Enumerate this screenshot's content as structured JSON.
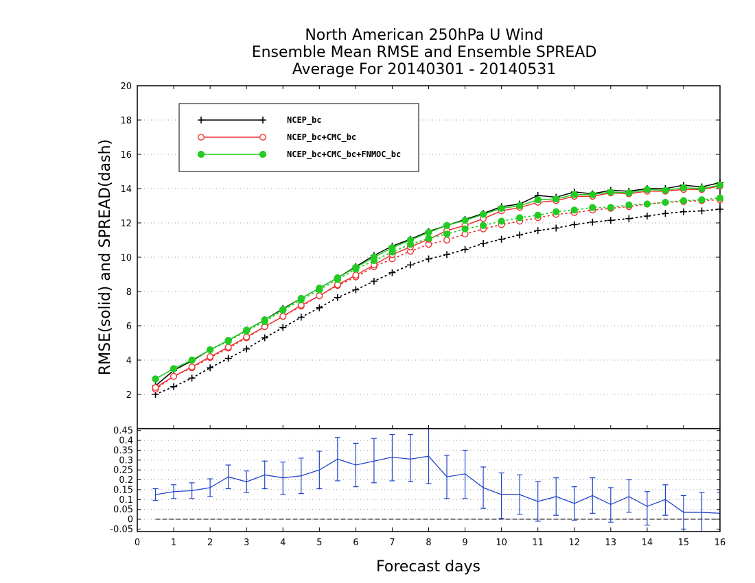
{
  "chart_data": [
    {
      "type": "line",
      "title_lines": [
        "North American 250hPa U Wind",
        "Ensemble Mean RMSE and Ensemble SPREAD",
        "Average For 20140301 - 20140531"
      ],
      "ylabel": "RMSE(solid)  and  SPREAD(dash)",
      "xlim": [
        0,
        16
      ],
      "ylim": [
        0,
        20
      ],
      "yticks": [
        2,
        4,
        6,
        8,
        10,
        12,
        14,
        16,
        18,
        20
      ],
      "grid": "horizontal dotted",
      "legend_position": "top-left",
      "x": [
        0.5,
        1,
        1.5,
        2,
        2.5,
        3,
        3.5,
        4,
        4.5,
        5,
        5.5,
        6,
        6.5,
        7,
        7.5,
        8,
        8.5,
        9,
        9.5,
        10,
        10.5,
        11,
        11.5,
        12,
        12.5,
        13,
        13.5,
        14,
        14.5,
        15,
        15.5,
        16
      ],
      "series": [
        {
          "name": "NCEP_bc",
          "color": "#000000",
          "marker": "plus",
          "rmse": [
            2.5,
            3.4,
            3.95,
            4.6,
            5.15,
            5.75,
            6.35,
            7.0,
            7.6,
            8.2,
            8.8,
            9.45,
            10.1,
            10.65,
            11.05,
            11.5,
            11.85,
            12.2,
            12.55,
            12.95,
            13.1,
            13.6,
            13.5,
            13.8,
            13.7,
            13.9,
            13.85,
            14.0,
            14.0,
            14.2,
            14.1,
            14.35
          ],
          "spread": [
            2.0,
            2.45,
            2.95,
            3.55,
            4.1,
            4.65,
            5.3,
            5.9,
            6.5,
            7.05,
            7.65,
            8.1,
            8.6,
            9.1,
            9.55,
            9.9,
            10.15,
            10.45,
            10.8,
            11.05,
            11.3,
            11.55,
            11.7,
            11.9,
            12.05,
            12.15,
            12.25,
            12.4,
            12.55,
            12.65,
            12.7,
            12.8
          ]
        },
        {
          "name": "NCEP_bc+CMC_bc",
          "color": "#ee3333",
          "marker": "open-circle",
          "rmse": [
            2.4,
            3.05,
            3.6,
            4.2,
            4.75,
            5.35,
            5.95,
            6.55,
            7.2,
            7.75,
            8.4,
            8.95,
            9.55,
            10.15,
            10.6,
            11.05,
            11.55,
            11.85,
            12.25,
            12.7,
            12.9,
            13.2,
            13.3,
            13.55,
            13.55,
            13.75,
            13.7,
            13.85,
            13.85,
            13.95,
            13.95,
            14.15
          ],
          "spread": [
            2.3,
            3.05,
            3.55,
            4.15,
            4.7,
            5.3,
            5.95,
            6.55,
            7.15,
            7.75,
            8.35,
            8.85,
            9.45,
            9.9,
            10.35,
            10.75,
            11.0,
            11.35,
            11.65,
            11.9,
            12.1,
            12.3,
            12.5,
            12.6,
            12.75,
            12.85,
            12.95,
            13.1,
            13.2,
            13.25,
            13.3,
            13.35
          ]
        },
        {
          "name": "NCEP_bc+CMC_bc+FNMOC_bc",
          "color": "#22cc22",
          "marker": "filled-circle",
          "rmse": [
            2.9,
            3.5,
            4.0,
            4.6,
            5.15,
            5.75,
            6.35,
            6.95,
            7.6,
            8.2,
            8.8,
            9.4,
            10.0,
            10.55,
            11.0,
            11.45,
            11.85,
            12.15,
            12.5,
            12.85,
            13.0,
            13.35,
            13.4,
            13.65,
            13.65,
            13.8,
            13.75,
            13.95,
            13.9,
            14.05,
            14.0,
            14.2
          ],
          "spread": [
            2.9,
            3.5,
            4.0,
            4.6,
            5.1,
            5.7,
            6.25,
            6.9,
            7.5,
            8.1,
            8.7,
            9.3,
            9.8,
            10.3,
            10.75,
            11.1,
            11.35,
            11.65,
            11.85,
            12.1,
            12.3,
            12.45,
            12.65,
            12.75,
            12.9,
            12.9,
            13.05,
            13.1,
            13.2,
            13.3,
            13.35,
            13.45
          ]
        }
      ],
      "legend": [
        "NCEP_bc",
        "NCEP_bc+CMC_bc",
        "NCEP_bc+CMC_bc+FNMOC_bc"
      ]
    },
    {
      "type": "line",
      "xlabel": "Forecast days",
      "xlim": [
        0,
        16
      ],
      "ylim": [
        -0.05,
        0.4
      ],
      "xticks": [
        0,
        1,
        2,
        3,
        4,
        5,
        6,
        7,
        8,
        9,
        10,
        11,
        12,
        13,
        14,
        15,
        16
      ],
      "yticks": [
        "-0.05",
        "0",
        "0.05",
        "0.1",
        "0.15",
        "0.2",
        "0.25",
        "0.3",
        "0.35",
        "0.4",
        "0.45"
      ],
      "grid": "horizontal dotted",
      "zero_line": true,
      "series": [
        {
          "color": "#2244cc",
          "x": [
            0.5,
            1,
            1.5,
            2,
            2.5,
            3,
            3.5,
            4,
            4.5,
            5,
            5.5,
            6,
            6.5,
            7,
            7.5,
            8,
            8.5,
            9,
            9.5,
            10,
            10.5,
            11,
            11.5,
            12,
            12.5,
            13,
            13.5,
            14,
            14.5,
            15,
            15.5,
            16
          ],
          "values": [
            0.125,
            0.14,
            0.145,
            0.16,
            0.215,
            0.19,
            0.225,
            0.21,
            0.22,
            0.25,
            0.305,
            0.275,
            0.295,
            0.315,
            0.305,
            0.32,
            0.215,
            0.23,
            0.16,
            0.125,
            0.125,
            0.09,
            0.115,
            0.08,
            0.12,
            0.075,
            0.115,
            0.065,
            0.1,
            0.035,
            0.035,
            0.03
          ],
          "err_low": [
            0.095,
            0.105,
            0.105,
            0.115,
            0.155,
            0.135,
            0.155,
            0.125,
            0.13,
            0.155,
            0.195,
            0.165,
            0.185,
            0.195,
            0.19,
            0.18,
            0.105,
            0.105,
            0.055,
            0.005,
            0.025,
            -0.01,
            0.02,
            -0.005,
            0.03,
            -0.015,
            0.035,
            -0.03,
            0.02,
            -0.05,
            -0.065,
            -0.065
          ],
          "err_high": [
            0.155,
            0.175,
            0.185,
            0.205,
            0.275,
            0.245,
            0.295,
            0.29,
            0.31,
            0.345,
            0.415,
            0.385,
            0.41,
            0.43,
            0.43,
            0.465,
            0.325,
            0.35,
            0.265,
            0.235,
            0.225,
            0.19,
            0.21,
            0.165,
            0.21,
            0.16,
            0.2,
            0.14,
            0.175,
            0.12,
            0.135,
            0.135
          ]
        }
      ]
    }
  ]
}
